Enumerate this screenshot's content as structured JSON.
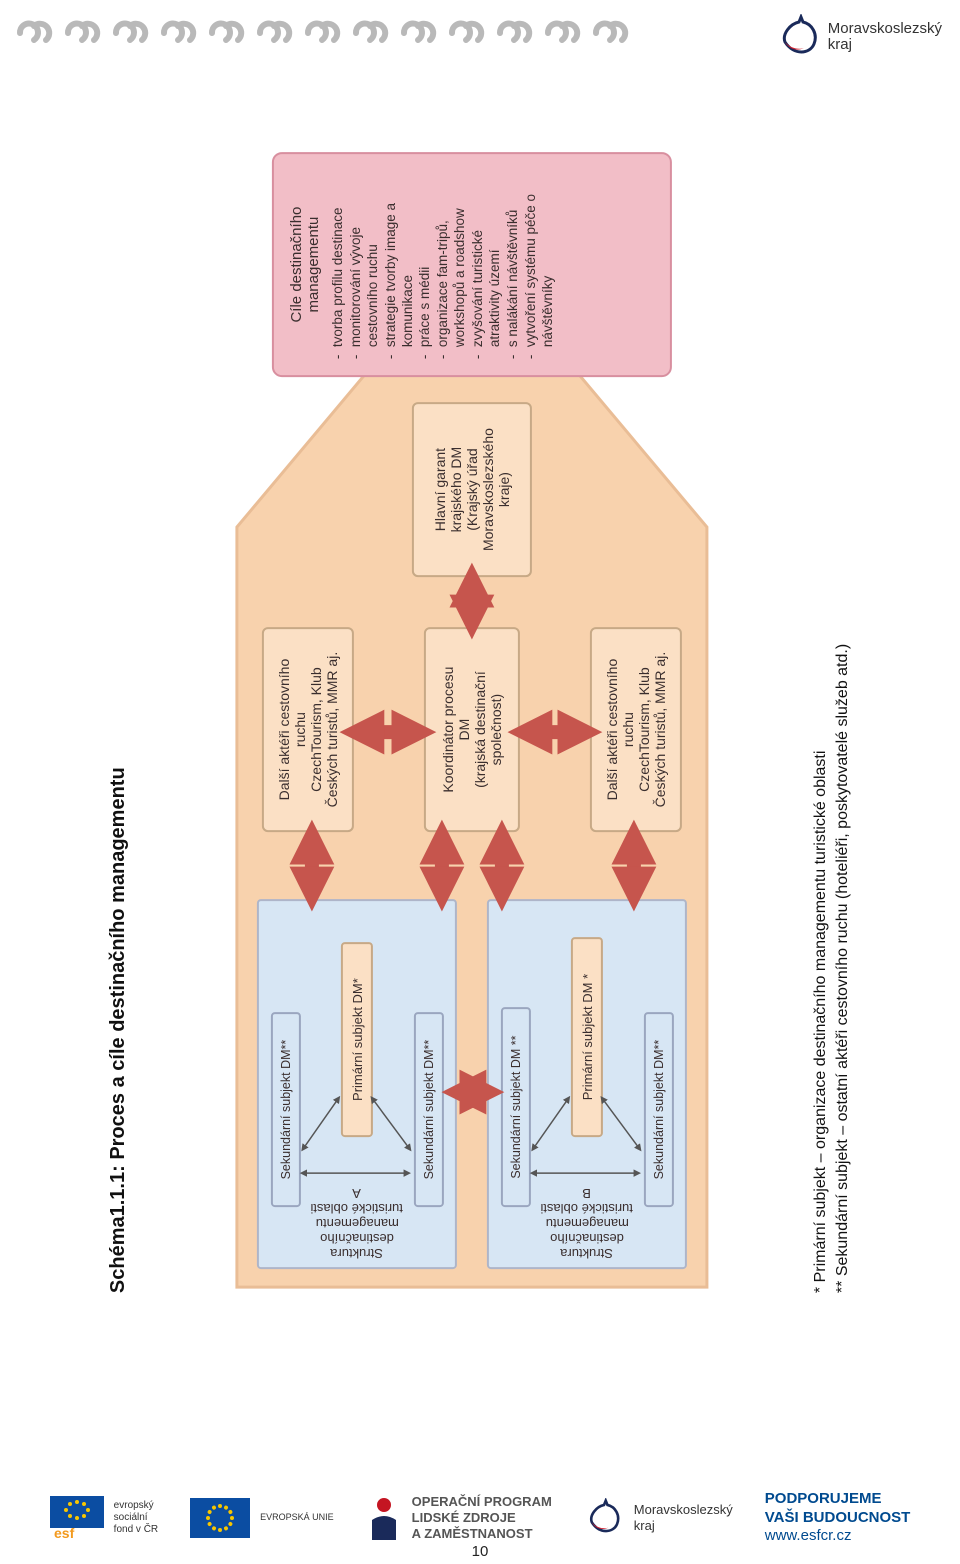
{
  "header": {
    "region_name": "Moravskoslezský\nkraj",
    "chain_color": "#b9b9b9",
    "chain_count": 13
  },
  "diagram": {
    "title": "Schéma1.1.1: Proces a cíle destinačního managementu",
    "house": {
      "fill": "#f8d2ad",
      "stroke": "#e9bd96"
    },
    "arrows": {
      "color": "#c6554d"
    },
    "cluster_a": {
      "side_label": "Struktura destinačního\nmanagementu turistické oblasti A",
      "sec1": "Sekundární subjekt DM**",
      "prim": "Primární subjekt DM*",
      "sec2": "Sekundární subjekt DM**"
    },
    "cluster_b": {
      "side_label": "Struktura destinačního\nmanagementu turistické oblasti B",
      "sec1": "Sekundární subjekt DM **",
      "prim": "Primární subjekt DM *",
      "sec2": "Sekundární subjekt DM**"
    },
    "actor_top": {
      "l1": "Další aktéři cestovního",
      "l2": "ruchu",
      "l3": "CzechTourism, Klub",
      "l4": "Českých turistů, MMR aj."
    },
    "actor_bottom": {
      "l1": "Další aktéři cestovního",
      "l2": "ruchu",
      "l3": "CzechTourism, Klub",
      "l4": "Českých turistů, MMR aj."
    },
    "coordinator": {
      "l1": "Koordinátor procesu",
      "l2": "DM",
      "l3": "(krajská destinační",
      "l4": "společnost)"
    },
    "guarantor": {
      "l1": "Hlavní garant",
      "l2": "krajského DM",
      "l3": "(Krajský úřad",
      "l4": "Moravskoslezského",
      "l5": "kraje)"
    },
    "goals": {
      "header": "Cíle destinačního\nmanagementu",
      "items": [
        "tvorba profilu destinace",
        "monitorování vývoje cestovního ruchu",
        "strategie tvorby image a komunikace",
        "práce s médii",
        "organizace fam-tripů, workshopů a roadshow",
        "zvyšování turistické atraktivity území",
        "s nalákání návštěvníků",
        "vytvoření systému péče o návštěvníky"
      ]
    },
    "footnotes": {
      "l1": "*  Primární subjekt – organizace destinačního managementu turistické oblasti",
      "l2": "** Sekundární subjekt – ostatní aktéři cestovního ruchu (hoteliéři, poskytovatelé služeb atd.)"
    }
  },
  "footer": {
    "esf": "evropský\nsociální\nfond v ČR",
    "eu": "EVROPSKÁ UNIE",
    "op": "OPERAČNÍ PROGRAM\nLIDSKÉ ZDROJE\nA ZAMĚSTNANOST",
    "region": "Moravskoslezský\nkraj",
    "support_t": "PODPORUJEME\nVAŠI BUDOUCNOST",
    "support_url": "www.esfcr.cz",
    "page_number": "10"
  }
}
